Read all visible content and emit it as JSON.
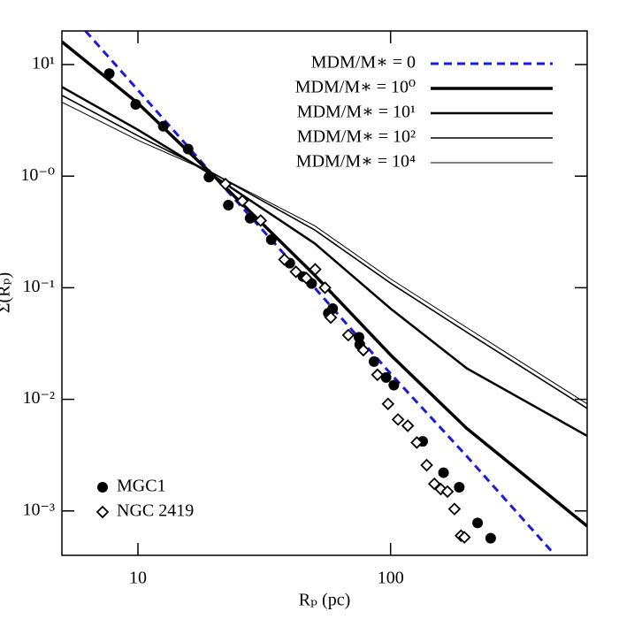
{
  "chart_data": {
    "type": "line",
    "xlabel": "Rₚ (pc)",
    "ylabel": "Σ(Rₚ)",
    "xlog": true,
    "ylog": true,
    "xlim": [
      5,
      600
    ],
    "ylim": [
      0.0004,
      20
    ],
    "xticks": [
      10,
      100
    ],
    "yticks": [
      {
        "value": 10,
        "label": "10¹"
      },
      {
        "value": 1,
        "label": "10⁻⁰"
      },
      {
        "value": 0.1,
        "label": "10⁻¹"
      },
      {
        "value": 0.01,
        "label": "10⁻²"
      },
      {
        "value": 0.001,
        "label": "10⁻³"
      }
    ],
    "series": [
      {
        "name": "MDM/M∗ =  0",
        "kind": "line",
        "color": "#1a1adc",
        "dash": true,
        "width": 3,
        "legend": "upper right",
        "x": [
          6.2,
          10,
          20,
          50,
          100,
          200,
          440
        ],
        "values": [
          20,
          5.9,
          1.0,
          0.1,
          0.017,
          0.0031,
          0.00042
        ]
      },
      {
        "name": "MDM/M∗ = 10⁰",
        "kind": "line",
        "color": "#000000",
        "dash": false,
        "width": 3.5,
        "legend": "upper right",
        "x": [
          5,
          10,
          20,
          50,
          100,
          200,
          600
        ],
        "values": [
          16,
          4.5,
          1,
          0.13,
          0.025,
          0.0055,
          0.00073
        ]
      },
      {
        "name": "MDM/M∗ = 10¹",
        "kind": "line",
        "color": "#000000",
        "dash": false,
        "width": 2.5,
        "legend": "upper right",
        "x": [
          5,
          10,
          20,
          50,
          100,
          200,
          600
        ],
        "values": [
          6.3,
          2.6,
          1,
          0.25,
          0.065,
          0.019,
          0.0047
        ]
      },
      {
        "name": "MDM/M∗ = 10²",
        "kind": "line",
        "color": "#000000",
        "dash": false,
        "width": 1.6,
        "legend": "upper right",
        "x": [
          5,
          10,
          20,
          50,
          100,
          200,
          600
        ],
        "values": [
          5.3,
          2.3,
          1.05,
          0.33,
          0.11,
          0.04,
          0.0083
        ]
      },
      {
        "name": "MDM/M∗ = 10⁴",
        "kind": "line",
        "color": "#000000",
        "dash": false,
        "width": 1,
        "legend": "upper right",
        "x": [
          5,
          10,
          20,
          50,
          100,
          200,
          600
        ],
        "values": [
          4.6,
          2.1,
          1.05,
          0.36,
          0.12,
          0.044,
          0.0091
        ]
      },
      {
        "name": "MGC1",
        "kind": "scatter",
        "marker": "circle",
        "color": "#000000",
        "legend": "lower left",
        "x": [
          7.7,
          9.8,
          12.6,
          15.8,
          19.1,
          22.8,
          27.8,
          33.7,
          39.9,
          45,
          48.7,
          56.7,
          59,
          75,
          75.5,
          86,
          96,
          103,
          134,
          162,
          187,
          221,
          249
        ],
        "values": [
          8.3,
          4.4,
          2.8,
          1.75,
          0.98,
          0.55,
          0.42,
          0.27,
          0.166,
          0.126,
          0.109,
          0.059,
          0.065,
          0.036,
          0.031,
          0.0218,
          0.0157,
          0.0134,
          0.0042,
          0.0022,
          0.00163,
          0.00078,
          0.00057
        ]
      },
      {
        "name": "NGC 2419",
        "kind": "scatter",
        "marker": "diamond",
        "color": "#000000",
        "legend": "lower left",
        "x": [
          22.2,
          25.9,
          30.6,
          38,
          42.2,
          46.4,
          50.3,
          55,
          58,
          68,
          78,
          88.7,
          97.7,
          107,
          117,
          127,
          139,
          149,
          158,
          168,
          179,
          190,
          196
        ],
        "values": [
          0.85,
          0.6,
          0.4,
          0.179,
          0.139,
          0.122,
          0.146,
          0.1,
          0.054,
          0.0376,
          0.0276,
          0.0166,
          0.0091,
          0.0066,
          0.0058,
          0.0041,
          0.00257,
          0.00175,
          0.00157,
          0.00149,
          0.00104,
          0.0006,
          0.00058
        ]
      }
    ]
  }
}
